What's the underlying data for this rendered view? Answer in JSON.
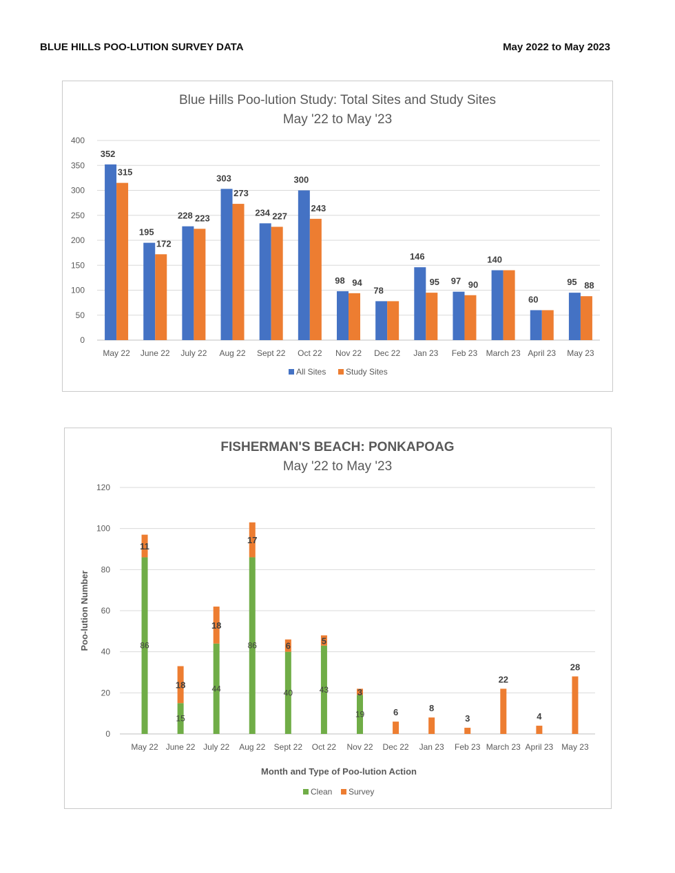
{
  "header": {
    "left_title": "BLUE HILLS POO-LUTION SURVEY DATA",
    "right_title": "May 2022 to May 2023"
  },
  "chart_data": [
    {
      "type": "bar",
      "title": "Blue Hills Poo-lution Study: Total Sites and Study Sites",
      "subtitle": "May '22 to May '23",
      "categories": [
        "May 22",
        "June 22",
        "July 22",
        "Aug 22",
        "Sept 22",
        "Oct 22",
        "Nov 22",
        "Dec 22",
        "Jan 23",
        "Feb 23",
        "March 23",
        "April 23",
        "May 23"
      ],
      "series": [
        {
          "name": "All Sites",
          "color": "#4472C4",
          "values": [
            352,
            195,
            228,
            303,
            234,
            300,
            98,
            78,
            146,
            97,
            140,
            60,
            95
          ],
          "labels": [
            "352",
            "195",
            "228",
            "303",
            "234",
            "300",
            "98",
            "78",
            "146",
            "97",
            "140",
            "60",
            "95"
          ]
        },
        {
          "name": "Study Sites",
          "color": "#ED7D31",
          "values": [
            315,
            172,
            223,
            273,
            227,
            243,
            94,
            78,
            95,
            90,
            140,
            60,
            88
          ],
          "labels": [
            "315",
            "172",
            "223",
            "273",
            "227",
            "243",
            "94",
            "",
            "95",
            "90",
            "",
            "",
            "88"
          ]
        }
      ],
      "ylim": [
        0,
        400
      ],
      "yticks": [
        0,
        50,
        100,
        150,
        200,
        250,
        300,
        350,
        400
      ],
      "xlabel": "",
      "ylabel": "",
      "grid": true,
      "legend": "bottom"
    },
    {
      "type": "bar",
      "stacked": true,
      "title": "FISHERMAN'S BEACH: PONKAPOAG",
      "subtitle": "May '22 to May '23",
      "categories": [
        "May 22",
        "June 22",
        "July 22",
        "Aug 22",
        "Sept 22",
        "Oct 22",
        "Nov 22",
        "Dec 22",
        "Jan 23",
        "Feb 23",
        "March 23",
        "April 23",
        "May 23"
      ],
      "series": [
        {
          "name": "Clean",
          "color": "#70AD47",
          "values": [
            86,
            15,
            44,
            86,
            40,
            43,
            19,
            0,
            0,
            0,
            0,
            0,
            0
          ],
          "labels": [
            "86",
            "15",
            "44",
            "86",
            "40",
            "43",
            "19",
            "",
            "",
            "",
            "",
            "",
            ""
          ]
        },
        {
          "name": "Survey",
          "color": "#ED7D31",
          "values": [
            11,
            18,
            18,
            17,
            6,
            5,
            3,
            6,
            8,
            3,
            22,
            4,
            28
          ],
          "labels": [
            "11",
            "18",
            "18",
            "17",
            "6",
            "5",
            "3",
            "6",
            "8",
            "3",
            "22",
            "4",
            "28"
          ]
        }
      ],
      "ylim": [
        0,
        120
      ],
      "yticks": [
        0,
        20,
        40,
        60,
        80,
        100,
        120
      ],
      "xlabel": "Month and Type of Poo-lution Action",
      "ylabel": "Poo-lution Number",
      "grid": true,
      "legend": "bottom"
    }
  ]
}
